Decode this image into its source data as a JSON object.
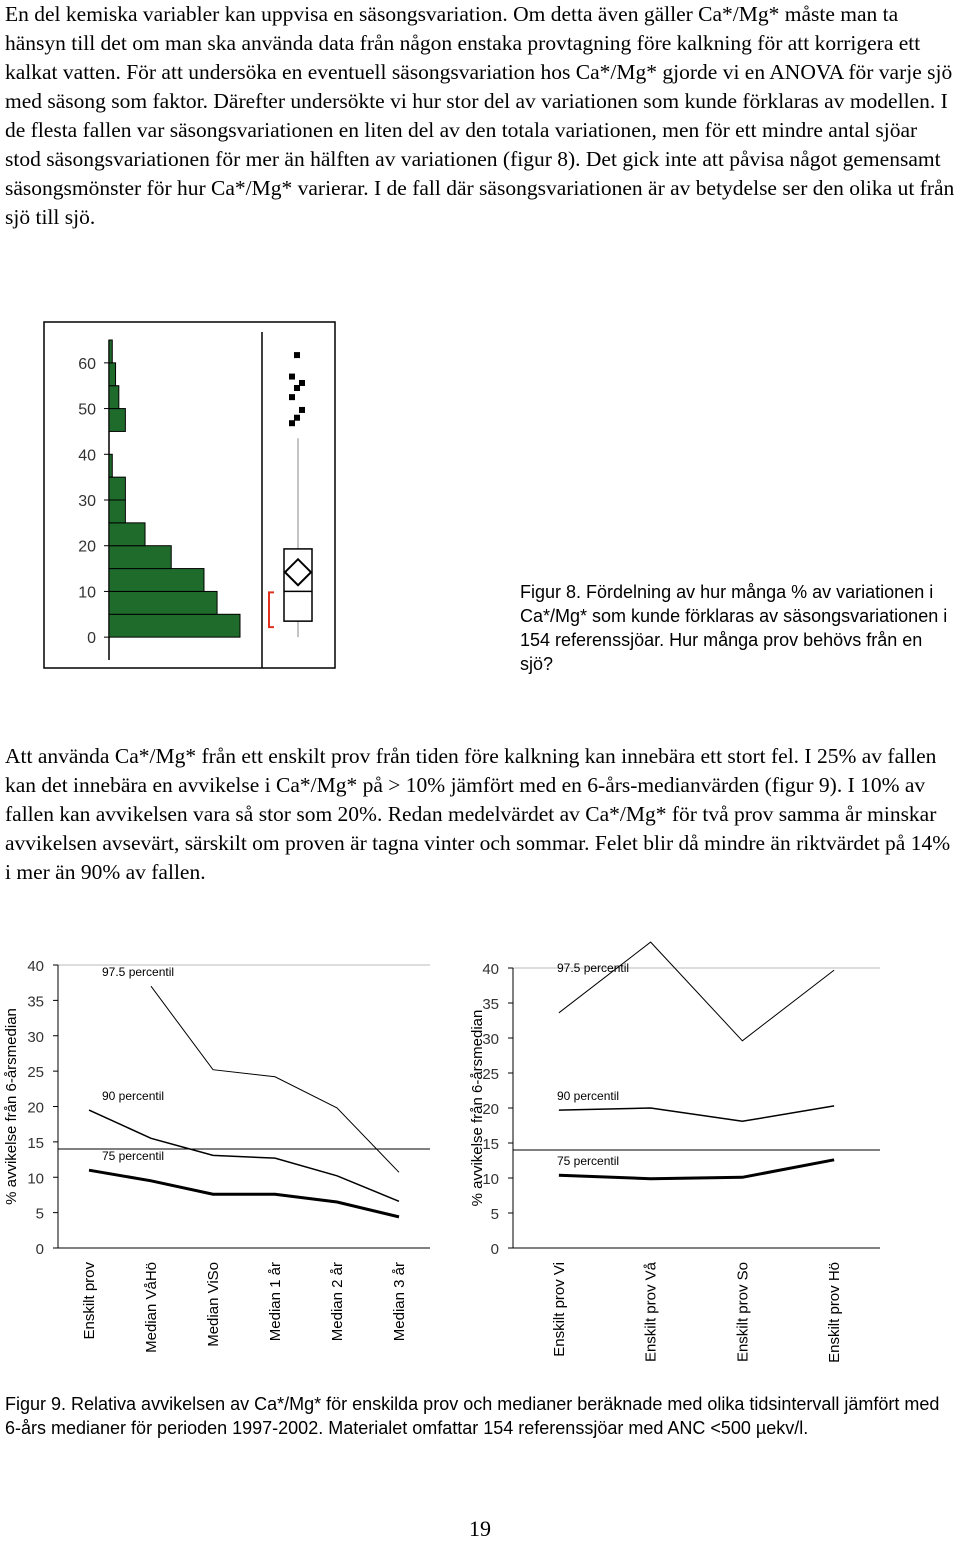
{
  "paragraphs": [
    "En del kemiska variabler kan uppvisa en säsongsvariation. Om detta även gäller Ca*/Mg* måste man ta hänsyn till det om man ska använda data från någon enstaka provtagning före kalkning för att korrigera ett kalkat vatten. För att undersöka en eventuell säsongsvariation hos Ca*/Mg* gjorde vi en ANOVA för varje sjö med säsong som faktor. Därefter undersökte vi hur stor del av variationen som kunde förklaras av modellen. I de flesta fallen var säsongsvariationen en liten del av den totala variationen, men för ett mindre antal sjöar stod säsongsvariationen för mer än hälften av variationen (figur 8). Det gick inte att påvisa något gemensamt säsongsmönster för hur Ca*/Mg* varierar. I de fall där säsongsvariationen är av betydelse ser den olika ut från sjö till sjö.",
    "Att använda Ca*/Mg* från ett enskilt prov från tiden före kalkning kan innebära ett stort fel. I 25% av fallen kan det innebära en avvikelse i Ca*/Mg* på > 10% jämfört med en 6-års-medianvärden (figur 9). I 10% av fallen kan avvikelsen vara så stor som 20%. Redan medelvärdet av Ca*/Mg* för två prov samma år minskar avvikelsen avsevärt, särskilt om proven är tagna vinter och sommar. Felet blir då mindre än riktvärdet på 14% i mer än 90% av fallen."
  ],
  "chart_data": [
    {
      "type": "histogram",
      "orientation": "horizontal",
      "color": "#1f6b2c",
      "bins": [
        0,
        5,
        10,
        15,
        20,
        25,
        30,
        35,
        40,
        45,
        50,
        55,
        60,
        65
      ],
      "counts": [
        40,
        33,
        29,
        19,
        11,
        5,
        5,
        1,
        0,
        5,
        3,
        2,
        1
      ],
      "ylim": [
        -5,
        65
      ],
      "yticks": [
        0,
        10,
        20,
        30,
        40,
        50,
        60
      ],
      "box": {
        "min": 0,
        "q1": 3.5,
        "median": 10,
        "q3": 19.3,
        "max": 43.5,
        "mean": 14.2,
        "outliers": [
          46.8,
          48,
          49.7,
          52.5,
          54.5,
          55.6,
          57,
          61.7
        ],
        "shortest_half": [
          2.2,
          9.8
        ],
        "shortest_half_color": "#e03020"
      }
    },
    {
      "type": "line",
      "categories": [
        "Enskilt prov",
        "Median VåHö",
        "Median ViSo",
        "Median 1 år",
        "Median 2 år",
        "Median 3 år"
      ],
      "ylabel": "% avvikelse från 6-årsmedian",
      "ylim": [
        0,
        40
      ],
      "yticks": [
        0,
        5,
        10,
        15,
        20,
        25,
        30,
        35,
        40
      ],
      "reference": 14,
      "series": [
        {
          "name": "97.5 percentil",
          "color": "#000000",
          "width": 1,
          "values": [
            null,
            37,
            25.2,
            24.2,
            19.8,
            10.7
          ]
        },
        {
          "name": "90 percentil",
          "color": "#000000",
          "width": 1.5,
          "values": [
            19.5,
            15.5,
            13.1,
            12.7,
            10.2,
            6.6
          ]
        },
        {
          "name": "75 percentil",
          "color": "#000000",
          "width": 3,
          "values": [
            11,
            9.5,
            7.6,
            7.6,
            6.5,
            4.4
          ]
        }
      ]
    },
    {
      "type": "line",
      "categories": [
        "Enskilt prov Vi",
        "Enskilt prov Vå",
        "Enskilt prov So",
        "Enskilt prov Hö"
      ],
      "ylabel": "% avvikelse från 6-årsmedian",
      "ylim": [
        0,
        40
      ],
      "yticks": [
        0,
        5,
        10,
        15,
        20,
        25,
        30,
        35,
        40
      ],
      "reference": 14,
      "series": [
        {
          "name": "97.5 percentil",
          "color": "#000000",
          "width": 1,
          "values": [
            33.6,
            43.7,
            29.6,
            39.7
          ]
        },
        {
          "name": "90 percentil",
          "color": "#000000",
          "width": 1.5,
          "values": [
            19.7,
            20,
            18.1,
            20.3
          ]
        },
        {
          "name": "75 percentil",
          "color": "#000000",
          "width": 3,
          "values": [
            10.4,
            9.9,
            10.1,
            12.6
          ]
        }
      ]
    }
  ],
  "captions": [
    "Figur 8. Fördelning av hur många % av variationen i Ca*/Mg* som kunde förklaras av säsongsvariationen i 154 referenssjöar. Hur många prov behövs från en sjö?",
    "Figur 9. Relativa avvikelsen av Ca*/Mg* för enskilda prov och medianer beräknade med olika tidsintervall jämfört med 6-års medianer för perioden 1997-2002. Materialet omfattar 154 referenssjöar med ANC <500 µekv/l."
  ],
  "page_number": "19"
}
